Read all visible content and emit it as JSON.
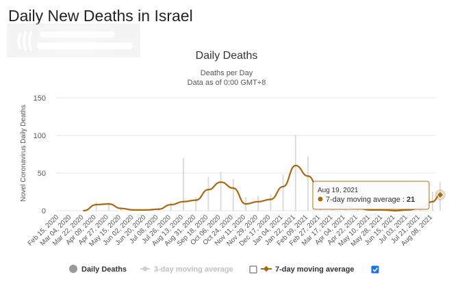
{
  "page": {
    "title": "Daily New Deaths in Israel"
  },
  "colors": {
    "avg7": "#a8680f",
    "avg3": "#c8c8c8",
    "bars": "#dcdcdc",
    "grid": "#e6e6e6",
    "checkbox_on": "#1a73e8"
  },
  "legend": {
    "items": [
      {
        "label": "Daily Deaths",
        "marker": "circle",
        "active": true,
        "checked": null
      },
      {
        "label": "3-day moving average",
        "marker": "line-circle",
        "active": false,
        "checked": false
      },
      {
        "label": "7-day moving average",
        "marker": "line-diamond",
        "active": true,
        "checked": true
      }
    ]
  },
  "tooltip": {
    "date": "Aug 19, 2021",
    "series_label": "7-day moving average",
    "value": "21"
  },
  "chart_data": {
    "type": "line",
    "title": "Daily Deaths",
    "subtitle_line1": "Deaths per Day",
    "subtitle_line2": "Data as of 0:00 GMT+8",
    "ylabel": "Novel Coronavirus Daily Deaths",
    "ylim": [
      0,
      150
    ],
    "yticks": [
      0,
      50,
      100,
      150
    ],
    "grid": true,
    "legend_position": "bottom",
    "xticks": [
      "Feb 15, 2020",
      "Mar 04, 2020",
      "Mar 22, 2020",
      "Apr 09, 2020",
      "Apr 27, 2020",
      "May 15, 2020",
      "Jun 02, 2020",
      "Jun 20, 2020",
      "Jul 08, 2020",
      "Jul 26, 2020",
      "Aug 13, 2020",
      "Aug 31, 2020",
      "Sep 18, 2020",
      "Oct 06, 2020",
      "Oct 24, 2020",
      "Nov 11, 2020",
      "Nov 29, 2020",
      "Dec 17, 2020",
      "Jan 04, 2021",
      "Jan 22, 2021",
      "Feb 09, 2021",
      "Feb 27, 2021",
      "Mar 17, 2021",
      "Apr 04, 2021",
      "Apr 22, 2021",
      "May 10, 2021",
      "May 28, 2021",
      "Jun 15, 2021",
      "Jul 03, 2021",
      "Jul 21, 2021",
      "Aug 08, 2021"
    ],
    "series": [
      {
        "name": "7-day moving average",
        "x": [
          "Mar 22, 2020",
          "Apr 09, 2020",
          "Apr 27, 2020",
          "May 15, 2020",
          "Jun 02, 2020",
          "Jun 20, 2020",
          "Jul 08, 2020",
          "Jul 26, 2020",
          "Aug 13, 2020",
          "Aug 31, 2020",
          "Sep 18, 2020",
          "Oct 06, 2020",
          "Oct 24, 2020",
          "Nov 11, 2020",
          "Nov 29, 2020",
          "Dec 17, 2020",
          "Jan 04, 2021",
          "Jan 22, 2021",
          "Feb 09, 2021",
          "Feb 27, 2021",
          "Mar 17, 2021",
          "Apr 04, 2021",
          "Apr 22, 2021",
          "May 10, 2021",
          "May 28, 2021",
          "Jun 15, 2021",
          "Jul 03, 2021",
          "Jul 21, 2021",
          "Aug 08, 2021",
          "Aug 19, 2021"
        ],
        "values": [
          0,
          8,
          9,
          3,
          1,
          1,
          2,
          8,
          12,
          14,
          28,
          38,
          30,
          9,
          12,
          15,
          32,
          60,
          46,
          24,
          10,
          5,
          3,
          1,
          1,
          0,
          1,
          3,
          12,
          21
        ]
      },
      {
        "name": "Daily Deaths",
        "x": [
          "Mar 22, 2020",
          "Apr 09, 2020",
          "Apr 27, 2020",
          "May 15, 2020",
          "Jun 02, 2020",
          "Jun 20, 2020",
          "Jul 08, 2020",
          "Jul 26, 2020",
          "Aug 13, 2020",
          "Aug 31, 2020",
          "Sep 18, 2020",
          "Oct 06, 2020",
          "Oct 24, 2020",
          "Nov 11, 2020",
          "Nov 29, 2020",
          "Dec 17, 2020",
          "Jan 04, 2021",
          "Jan 22, 2021",
          "Feb 09, 2021",
          "Feb 27, 2021",
          "Mar 17, 2021",
          "Apr 04, 2021",
          "Apr 22, 2021",
          "May 10, 2021",
          "May 28, 2021",
          "Jun 15, 2021",
          "Jul 03, 2021",
          "Jul 21, 2021",
          "Aug 08, 2021",
          "Aug 19, 2021"
        ],
        "values": [
          1,
          12,
          11,
          5,
          2,
          2,
          4,
          12,
          70,
          18,
          45,
          52,
          42,
          18,
          20,
          22,
          48,
          100,
          72,
          38,
          16,
          8,
          5,
          2,
          2,
          1,
          3,
          6,
          25,
          38
        ]
      }
    ]
  }
}
